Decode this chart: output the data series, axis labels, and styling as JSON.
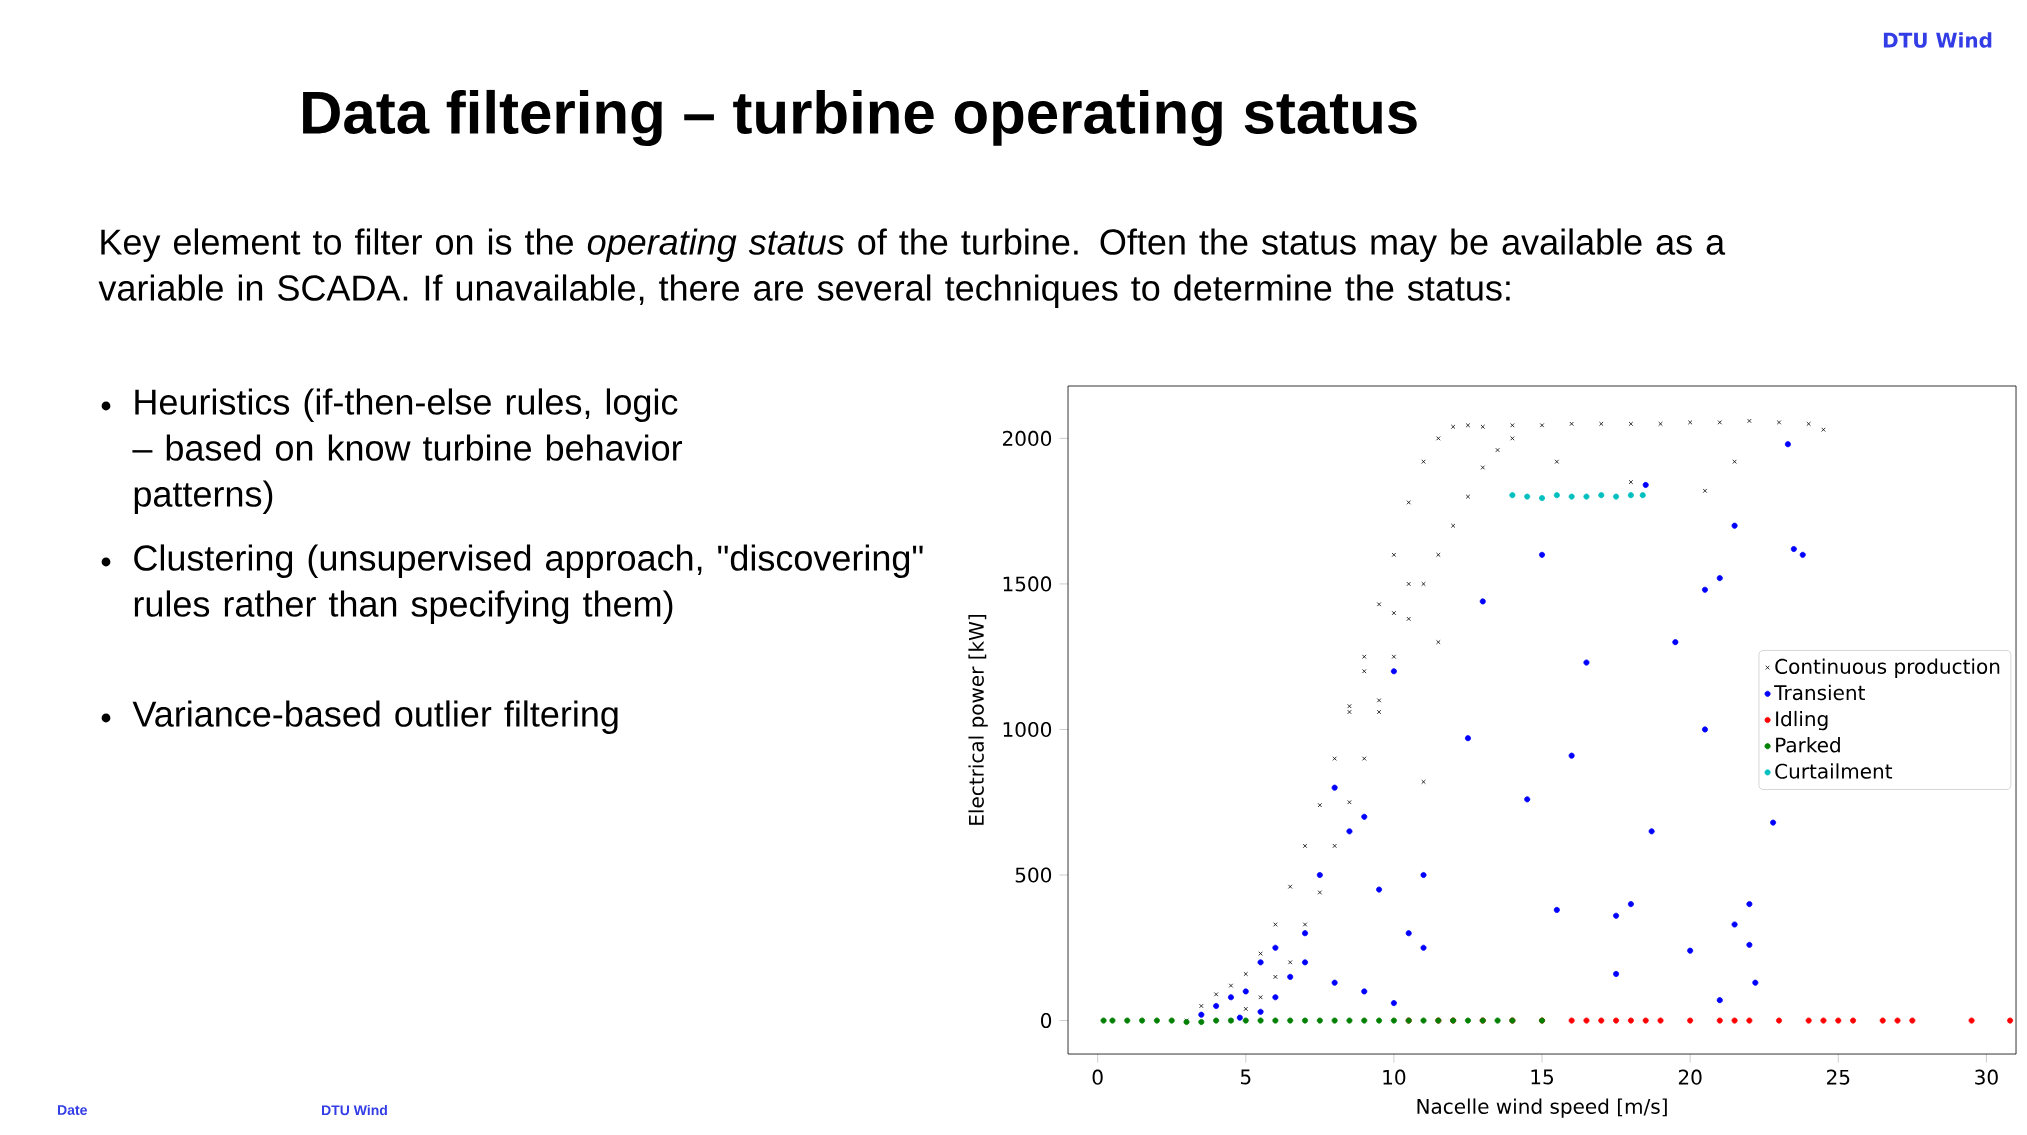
{
  "chart_data": {
    "type": "scatter",
    "title": "Data filtering – turbine operating status",
    "subtitle": "Key element to filter on is the *operating status* of the turbine. Often the status may be available as a variable in SCADA. If unavailable, there are several techniques to determine the status:",
    "annotations": [
      "Heuristics (if-then-else rules, logic – based on know turbine behavior patterns)",
      "Clustering (unsupervised approach, \"discovering\" rules rather than specifying them)",
      "Variance-based outlier filtering",
      "DTU Wind",
      "Date",
      "DTU Wind"
    ],
    "xlabel": "Nacelle wind speed [m/s]",
    "ylabel": "Electrical power [kW]",
    "xlim": [
      -1,
      31
    ],
    "ylim": [
      -115,
      2180
    ],
    "xticks": [
      0,
      5,
      10,
      15,
      20,
      25,
      30
    ],
    "yticks": [
      0,
      500,
      1000,
      1500,
      2000
    ],
    "legend": "right",
    "grid": false,
    "series": [
      {
        "name": "Continuous production",
        "color": "#000000",
        "marker": "cross",
        "x": [
          3,
          3.5,
          4,
          4.5,
          5,
          5.5,
          6,
          6.5,
          7,
          7.5,
          8,
          8.5,
          9,
          9.5,
          10,
          10.5,
          11,
          11.5,
          12,
          12.5,
          4.5,
          5,
          5.5,
          6,
          6.5,
          7,
          7.5,
          8,
          8.5,
          9,
          9.5,
          10,
          10.5,
          11,
          11.5,
          12,
          12.5,
          13,
          13.5,
          14,
          13,
          14,
          15,
          16,
          17,
          18,
          19,
          20,
          21,
          22,
          23,
          24,
          24.5,
          9.5,
          11,
          11.5,
          15.5,
          18,
          20.5,
          21.5,
          8.5,
          9,
          10,
          10.5
        ],
        "values": [
          0,
          50,
          90,
          120,
          160,
          230,
          330,
          460,
          600,
          740,
          900,
          1080,
          1250,
          1430,
          1600,
          1780,
          1920,
          2000,
          2040,
          2045,
          0,
          40,
          80,
          150,
          200,
          330,
          440,
          600,
          750,
          900,
          1060,
          1250,
          1380,
          1500,
          1600,
          1700,
          1800,
          1900,
          1960,
          2000,
          2040,
          2045,
          2045,
          2050,
          2050,
          2050,
          2050,
          2055,
          2055,
          2060,
          2055,
          2050,
          2030,
          1100,
          820,
          1300,
          1920,
          1850,
          1820,
          1920,
          1060,
          1200,
          1400,
          1500
        ]
      },
      {
        "name": "Transient",
        "color": "#0000ff",
        "marker": "circle",
        "x": [
          3.5,
          4,
          4.5,
          5,
          5.5,
          6,
          6.5,
          7,
          7.5,
          8,
          8.5,
          9,
          9.5,
          10,
          10.5,
          11,
          11,
          12.5,
          13,
          14.5,
          15,
          15.5,
          16,
          16.5,
          17.5,
          17.5,
          18,
          18.5,
          18.7,
          19.5,
          20,
          20.5,
          20.5,
          21,
          21.5,
          21,
          21.5,
          22,
          22,
          22.2,
          22.8,
          23.5,
          23.8,
          23.3,
          10,
          7,
          6,
          5.5,
          8,
          9,
          4.8
        ],
        "values": [
          20,
          50,
          80,
          100,
          200,
          250,
          150,
          300,
          500,
          800,
          650,
          700,
          450,
          1200,
          300,
          250,
          500,
          970,
          1440,
          760,
          1600,
          380,
          910,
          1230,
          360,
          160,
          400,
          1840,
          650,
          1300,
          240,
          1000,
          1480,
          1520,
          1700,
          70,
          330,
          400,
          260,
          130,
          680,
          1620,
          1600,
          1980,
          60,
          200,
          80,
          30,
          130,
          100,
          10
        ]
      },
      {
        "name": "Idling",
        "color": "#ff0000",
        "marker": "circle",
        "x": [
          10.5,
          11.5,
          12,
          13,
          14,
          15,
          16,
          16.5,
          17,
          17.5,
          18,
          18.5,
          19,
          20,
          21,
          21.5,
          22,
          23,
          24,
          24.5,
          25,
          25.5,
          26.5,
          27,
          27.5,
          29.5,
          30.8
        ],
        "values": [
          0,
          0,
          0,
          0,
          0,
          0,
          0,
          0,
          0,
          0,
          0,
          0,
          0,
          0,
          0,
          0,
          0,
          0,
          0,
          0,
          0,
          0,
          0,
          0,
          0,
          0,
          0
        ]
      },
      {
        "name": "Parked",
        "color": "#008000",
        "marker": "circle",
        "x": [
          0.2,
          0.5,
          1,
          1.5,
          2,
          2.5,
          3,
          3.5,
          4,
          4.5,
          5,
          5.5,
          6,
          6.5,
          7,
          7.5,
          8,
          8.5,
          9,
          9.5,
          10,
          10.5,
          11,
          11.5,
          12,
          12.5,
          13,
          13.5,
          14,
          15
        ],
        "values": [
          0,
          0,
          0,
          0,
          0,
          0,
          -5,
          -5,
          0,
          0,
          0,
          0,
          0,
          0,
          0,
          0,
          0,
          0,
          0,
          0,
          0,
          0,
          0,
          0,
          0,
          0,
          0,
          0,
          0,
          0
        ]
      },
      {
        "name": "Curtailment",
        "color": "#00bfbf",
        "marker": "circle",
        "x": [
          14,
          14.5,
          15,
          15.5,
          16,
          16.5,
          17,
          17.5,
          18,
          18.4
        ],
        "values": [
          1805,
          1800,
          1795,
          1805,
          1800,
          1800,
          1805,
          1800,
          1805,
          1805
        ]
      }
    ]
  }
}
